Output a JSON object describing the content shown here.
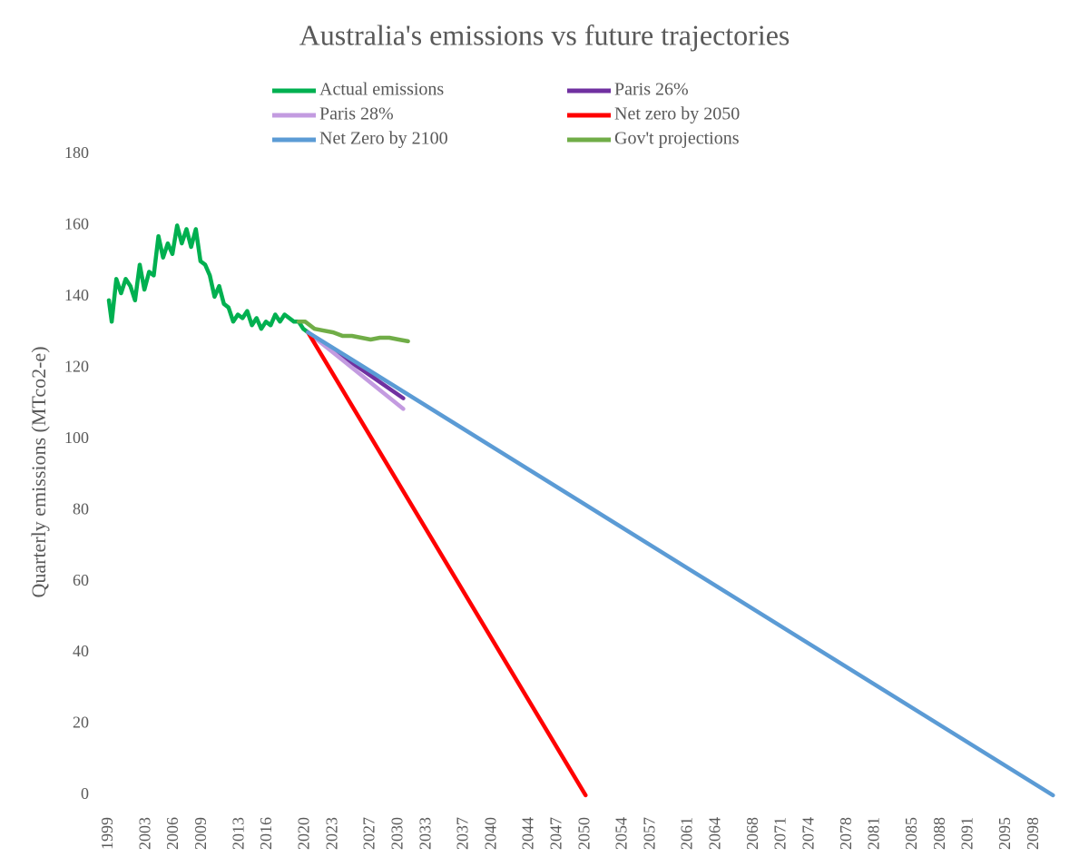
{
  "chart_data": {
    "type": "line",
    "title": "Australia's emissions vs future trajectories",
    "y_label": "Quarterly emissions (MTco2-e)",
    "xlim": [
      1998,
      2101
    ],
    "ylim": [
      0,
      180
    ],
    "xticks": [
      1999,
      2003,
      2006,
      2009,
      2013,
      2016,
      2020,
      2023,
      2027,
      2030,
      2033,
      2037,
      2040,
      2044,
      2047,
      2050,
      2054,
      2057,
      2061,
      2064,
      2068,
      2071,
      2074,
      2078,
      2081,
      2085,
      2088,
      2091,
      2095,
      2098
    ],
    "yticks": [
      0,
      20,
      40,
      60,
      80,
      100,
      120,
      140,
      160,
      180
    ],
    "grid": false,
    "legend": "top",
    "series": [
      {
        "name": "Actual emissions",
        "color": "#00b050",
        "x": [
          1999.0,
          1999.3,
          1999.8,
          2000.3,
          2000.8,
          2001.3,
          2001.8,
          2002.3,
          2002.8,
          2003.3,
          2003.8,
          2004.3,
          2004.8,
          2005.3,
          2005.8,
          2006.3,
          2006.8,
          2007.3,
          2007.8,
          2008.3,
          2008.8,
          2009.3,
          2009.8,
          2010.3,
          2010.8,
          2011.3,
          2011.8,
          2012.3,
          2012.8,
          2013.3,
          2013.8,
          2014.3,
          2014.8,
          2015.3,
          2015.8,
          2016.3,
          2016.8,
          2017.3,
          2017.8,
          2018.3,
          2018.8,
          2019.3,
          2019.8,
          2020.3
        ],
        "values": [
          139,
          133,
          145,
          141,
          145,
          143,
          139,
          149,
          142,
          147,
          146,
          157,
          151,
          155,
          152,
          160,
          155,
          159,
          154,
          159,
          150,
          149,
          146,
          140,
          143,
          138,
          137,
          133,
          135,
          134,
          136,
          132,
          134,
          131,
          133,
          132,
          135,
          133,
          135,
          134,
          133,
          133,
          131,
          130
        ]
      },
      {
        "name": "Paris 26%",
        "color": "#7030a0",
        "x": [
          2020.3,
          2030.5
        ],
        "values": [
          130,
          111.5
        ]
      },
      {
        "name": "Paris 28%",
        "color": "#c39be0",
        "x": [
          2020.3,
          2030.5
        ],
        "values": [
          130,
          108.5
        ]
      },
      {
        "name": "Net zero by 2050",
        "color": "#ff0000",
        "x": [
          2020.3,
          2050
        ],
        "values": [
          130,
          0
        ]
      },
      {
        "name": "Net Zero by 2100",
        "color": "#5b9bd5",
        "x": [
          2020.3,
          2100
        ],
        "values": [
          130,
          0
        ]
      },
      {
        "name": "Gov't projections",
        "color": "#70ad47",
        "x": [
          2019.3,
          2020,
          2021,
          2022,
          2023,
          2024,
          2025,
          2026,
          2027,
          2028,
          2029,
          2030,
          2031
        ],
        "values": [
          133,
          133,
          131,
          130.5,
          130,
          129,
          129,
          128.5,
          128,
          128.5,
          128.5,
          128,
          127.5
        ]
      }
    ]
  }
}
